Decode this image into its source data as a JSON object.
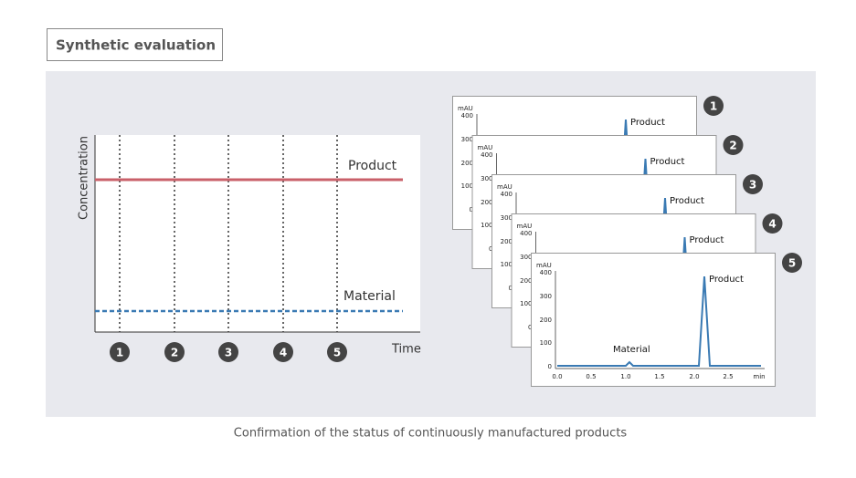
{
  "header": {
    "title": "Synthetic evaluation"
  },
  "caption": "Confirmation of the status of continuously manufactured products",
  "schematic": {
    "y_label": "Concentration",
    "x_label": "Time",
    "product_label": "Product",
    "material_label": "Material",
    "markers": [
      "1",
      "2",
      "3",
      "4",
      "5"
    ]
  },
  "chromatogram": {
    "y_unit": "mAU",
    "y_ticks": [
      "400",
      "300",
      "200",
      "100",
      "0"
    ],
    "x_ticks": [
      "0.0",
      "0.5",
      "1.0",
      "1.5",
      "2.0",
      "2.5"
    ],
    "x_unit": "min",
    "product_label": "Product",
    "material_label": "Material"
  }
}
